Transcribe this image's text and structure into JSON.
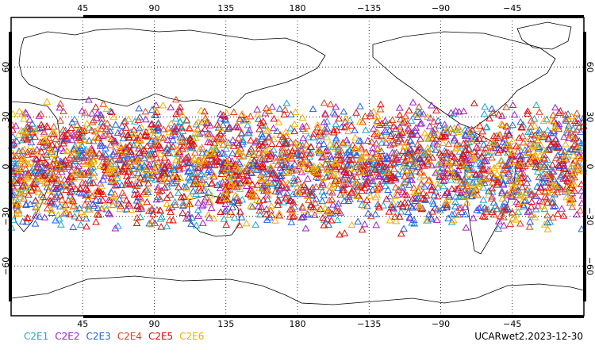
{
  "chart_data": {
    "type": "scatter",
    "projection": "cylindrical-equidistant",
    "lon_range": [
      0,
      360
    ],
    "lat_range": [
      -90,
      90
    ],
    "top_ticks": [
      "45",
      "90",
      "135",
      "180",
      "−135",
      "−90",
      "−45"
    ],
    "bottom_ticks": [
      "45",
      "90",
      "135",
      "180",
      "−135",
      "−90",
      "−45"
    ],
    "lat_ticks": [
      "60",
      "30",
      "0",
      "−30",
      "−60"
    ],
    "grid": true,
    "marker": "triangle",
    "series": [
      {
        "name": "C2E1",
        "color": "#1aa6c9",
        "lat_min": -40,
        "lat_max": 40,
        "count": 520
      },
      {
        "name": "C2E2",
        "color": "#a020c0",
        "lat_min": -40,
        "lat_max": 42,
        "count": 520
      },
      {
        "name": "C2E3",
        "color": "#1e64e0",
        "lat_min": -42,
        "lat_max": 40,
        "count": 520
      },
      {
        "name": "C2E4",
        "color": "#e0401e",
        "lat_min": -40,
        "lat_max": 42,
        "count": 520
      },
      {
        "name": "C2E5",
        "color": "#e00a0a",
        "lat_min": -42,
        "lat_max": 40,
        "count": 560
      },
      {
        "name": "C2E6",
        "color": "#f0b000",
        "lat_min": -40,
        "lat_max": 40,
        "count": 520
      }
    ],
    "title": ""
  },
  "footer": {
    "product_label": "UCARwet2.2023-12-30"
  }
}
